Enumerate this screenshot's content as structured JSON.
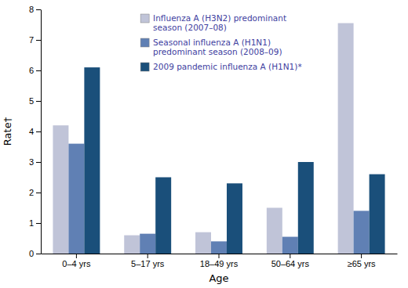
{
  "chart_data": {
    "type": "bar",
    "xlabel": "Age",
    "ylabel": "Rate†",
    "categories": [
      "0–4 yrs",
      "5–17 yrs",
      "18–49 yrs",
      "50–64 yrs",
      "≥65 yrs"
    ],
    "series": [
      {
        "name": "Influenza A (H3N2) predominant\nseason (2007–08)",
        "color": "#c0c4d8",
        "values": [
          4.2,
          0.6,
          0.7,
          1.5,
          7.55
        ]
      },
      {
        "name": "Seasonal influenza A (H1N1)\npredominant season (2008–09)",
        "color": "#6080b4",
        "values": [
          3.6,
          0.65,
          0.4,
          0.55,
          1.4
        ]
      },
      {
        "name": "2009 pandemic influenza A (H1N1)*",
        "color": "#1a4f7a",
        "values": [
          6.1,
          2.5,
          2.3,
          3.0,
          2.6
        ]
      }
    ],
    "ylim": [
      0,
      8
    ],
    "yticks": [
      0,
      1,
      2,
      3,
      4,
      5,
      6,
      7,
      8
    ],
    "grid": false,
    "legend": "upper left"
  }
}
